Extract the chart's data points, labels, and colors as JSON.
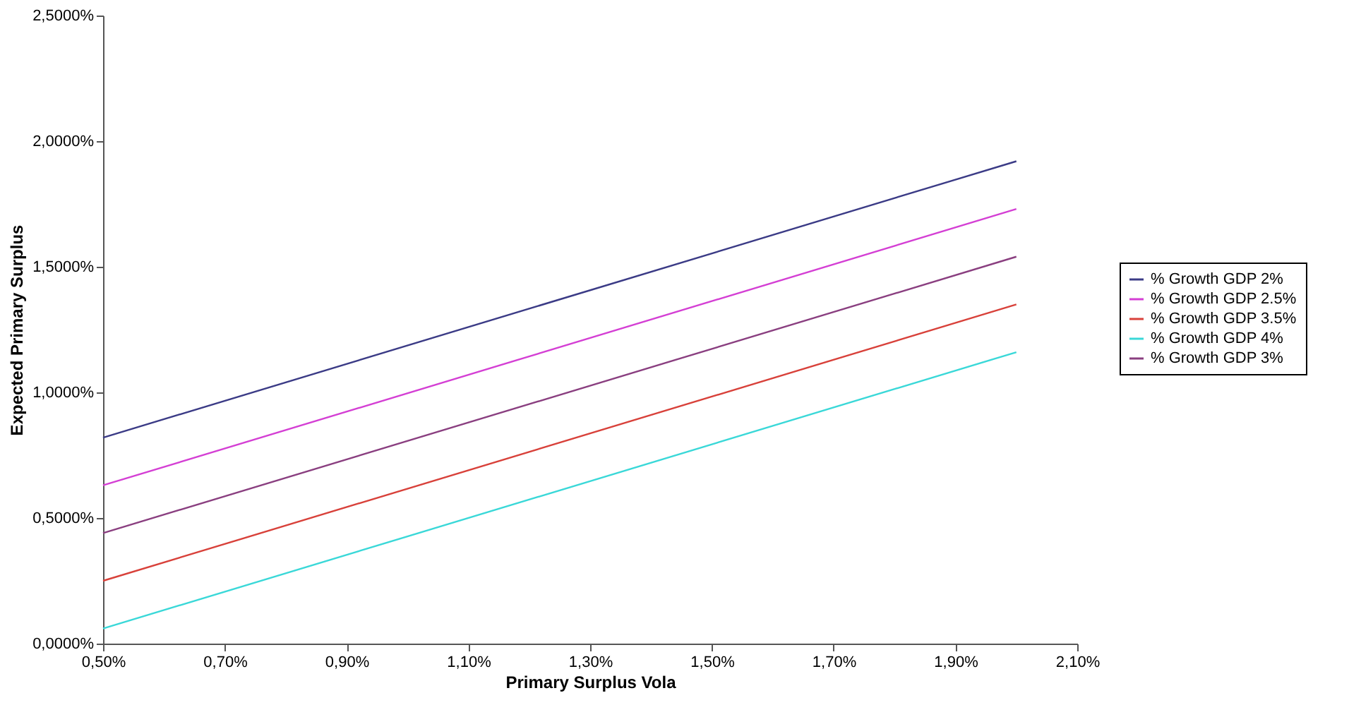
{
  "chart_data": {
    "type": "line",
    "xlabel": "Primary Surplus Vola",
    "ylabel": "Expected Primary Surplus",
    "x": [
      0.5,
      2.0
    ],
    "series": [
      {
        "name": "% Growth GDP 2%",
        "color": "#3b3b86",
        "values": [
          0.82,
          1.92
        ]
      },
      {
        "name": "% Growth GDP 2.5%",
        "color": "#d43fd4",
        "values": [
          0.63,
          1.73
        ]
      },
      {
        "name": "% Growth GDP 3.5%",
        "color": "#d8413a",
        "values": [
          0.25,
          1.35
        ]
      },
      {
        "name": "% Growth GDP 4%",
        "color": "#3ad8d8",
        "values": [
          0.06,
          1.16
        ]
      },
      {
        "name": "% Growth GDP 3%",
        "color": "#8a3f80",
        "values": [
          0.44,
          1.54
        ]
      }
    ],
    "xlim": [
      0.5,
      2.1
    ],
    "ylim": [
      0,
      2.5
    ],
    "xticks": [
      {
        "value": 0.5,
        "label": "0,50%"
      },
      {
        "value": 0.7,
        "label": "0,70%"
      },
      {
        "value": 0.9,
        "label": "0,90%"
      },
      {
        "value": 1.1,
        "label": "1,10%"
      },
      {
        "value": 1.3,
        "label": "1,30%"
      },
      {
        "value": 1.5,
        "label": "1,50%"
      },
      {
        "value": 1.7,
        "label": "1,70%"
      },
      {
        "value": 1.9,
        "label": "1,90%"
      },
      {
        "value": 2.1,
        "label": "2,10%"
      }
    ],
    "yticks": [
      {
        "value": 0,
        "label": "0,0000%"
      },
      {
        "value": 0.5,
        "label": "0,5000%"
      },
      {
        "value": 1.0,
        "label": "1,0000%"
      },
      {
        "value": 1.5,
        "label": "1,5000%"
      },
      {
        "value": 2.0,
        "label": "2,0000%"
      },
      {
        "value": 2.5,
        "label": "2,5000%"
      }
    ],
    "grid": false,
    "legend": "right",
    "marker": "none",
    "line_style": "solid"
  }
}
